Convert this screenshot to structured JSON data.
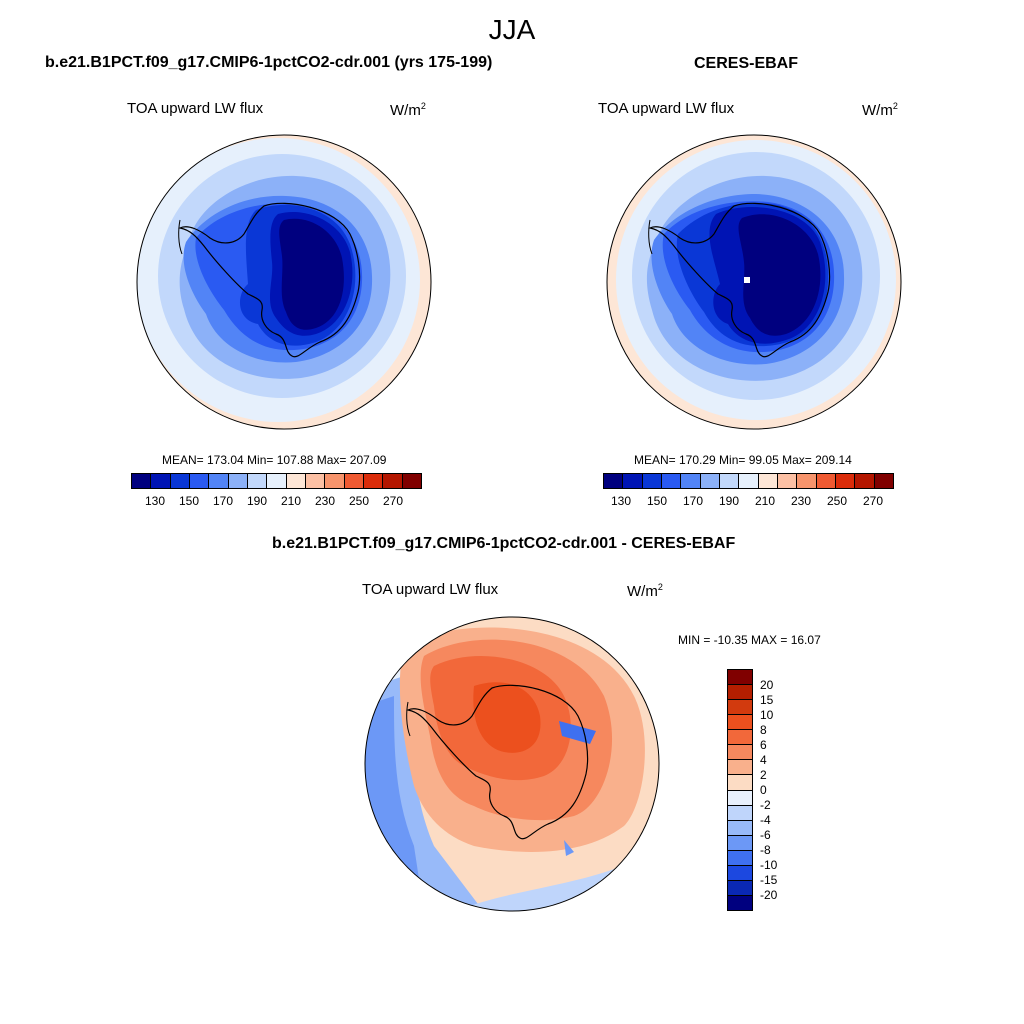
{
  "title": "JJA",
  "panels": {
    "model": {
      "title": "b.e21.B1PCT.f09_g17.CMIP6-1pctCO2-cdr.001 (yrs 175-199)",
      "left_string": "TOA upward LW flux",
      "units_base": "W/m",
      "units_exp": "2",
      "stats": "MEAN= 173.04  Min= 107.88  Max= 207.09"
    },
    "obs": {
      "title": "CERES-EBAF",
      "left_string": "TOA upward LW flux",
      "units_base": "W/m",
      "units_exp": "2",
      "stats": "MEAN= 170.29  Min=  99.05  Max= 209.14"
    },
    "diff": {
      "title": "b.e21.B1PCT.f09_g17.CMIP6-1pctCO2-cdr.001 - CERES-EBAF",
      "left_string": "TOA upward LW flux",
      "units_base": "W/m",
      "units_exp": "2",
      "stats": "MIN = -10.35 MAX =  16.07"
    }
  },
  "colorbars": {
    "abs": {
      "tick_labels": [
        "130",
        "150",
        "170",
        "190",
        "210",
        "230",
        "250",
        "270"
      ],
      "colors": [
        "#00007f",
        "#0014b4",
        "#0a37d6",
        "#2a5af2",
        "#5284f6",
        "#8cb1f8",
        "#c2d8fb",
        "#e6f0fc",
        "#fde6d6",
        "#fcc0a4",
        "#f7946c",
        "#f05a32",
        "#db2c0a",
        "#b41600",
        "#800000"
      ]
    },
    "diff": {
      "tick_labels": [
        "20",
        "15",
        "10",
        "8",
        "6",
        "4",
        "2",
        "0",
        "-2",
        "-4",
        "-6",
        "-8",
        "-10",
        "-15",
        "-20"
      ],
      "colors": [
        "#800000",
        "#b41e00",
        "#d23a0e",
        "#ec501e",
        "#f2683a",
        "#f6885e",
        "#f9b08c",
        "#fcdcc4",
        "#e8f0fc",
        "#bfd5fb",
        "#98baf9",
        "#6c98f6",
        "#3f70f0",
        "#1c48e0",
        "#0a28b4",
        "#00007f"
      ]
    }
  }
}
